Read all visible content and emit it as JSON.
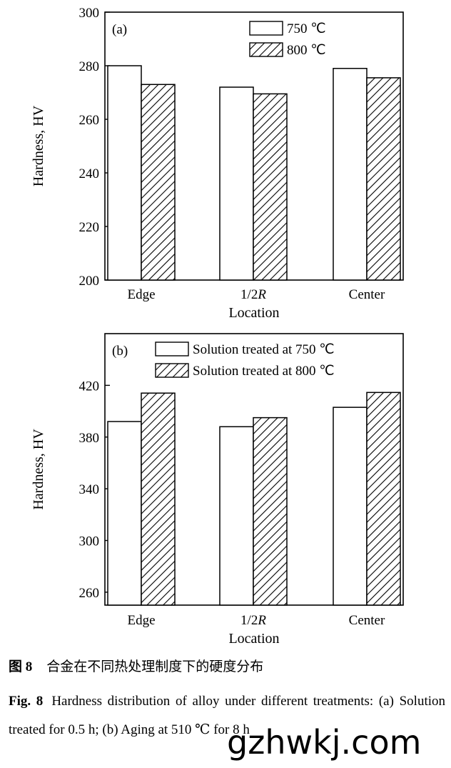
{
  "chart_data": [
    {
      "type": "bar",
      "panel_label": "(a)",
      "categories": [
        "Edge",
        "1/2R",
        "Center"
      ],
      "series": [
        {
          "name": "750 ℃",
          "values": [
            280,
            272,
            279
          ],
          "pattern": "open"
        },
        {
          "name": "800 ℃",
          "values": [
            273,
            269.5,
            275.5
          ],
          "pattern": "hatched"
        }
      ],
      "xlabel": "Location",
      "ylabel": "Hardness, HV",
      "ylim": [
        200,
        300
      ],
      "yticks": [
        200,
        220,
        240,
        260,
        280,
        300
      ],
      "legend_position": "top-right",
      "grid": false
    },
    {
      "type": "bar",
      "panel_label": "(b)",
      "categories": [
        "Edge",
        "1/2R",
        "Center"
      ],
      "series": [
        {
          "name": "Solution treated at 750 ℃",
          "values": [
            392,
            388,
            403
          ],
          "pattern": "open"
        },
        {
          "name": "Solution treated at 800 ℃",
          "values": [
            414,
            395,
            414.5
          ],
          "pattern": "hatched"
        }
      ],
      "xlabel": "Location",
      "ylabel": "Hardness, HV",
      "ylim": [
        250,
        460
      ],
      "yticks": [
        260,
        300,
        340,
        380,
        420
      ],
      "legend_position": "top-right",
      "grid": false
    }
  ],
  "caption": {
    "cn_label": "图 8",
    "cn_text": "合金在不同热处理制度下的硬度分布",
    "en_label": "Fig. 8",
    "en_text": "Hardness distribution of alloy under different treatments: (a) Solution treated for 0.5 h; (b) Aging at 510 ℃ for 8 h"
  },
  "watermark": "gzhwkj.com",
  "colors": {
    "ink": "#000000",
    "background": "#ffffff"
  }
}
